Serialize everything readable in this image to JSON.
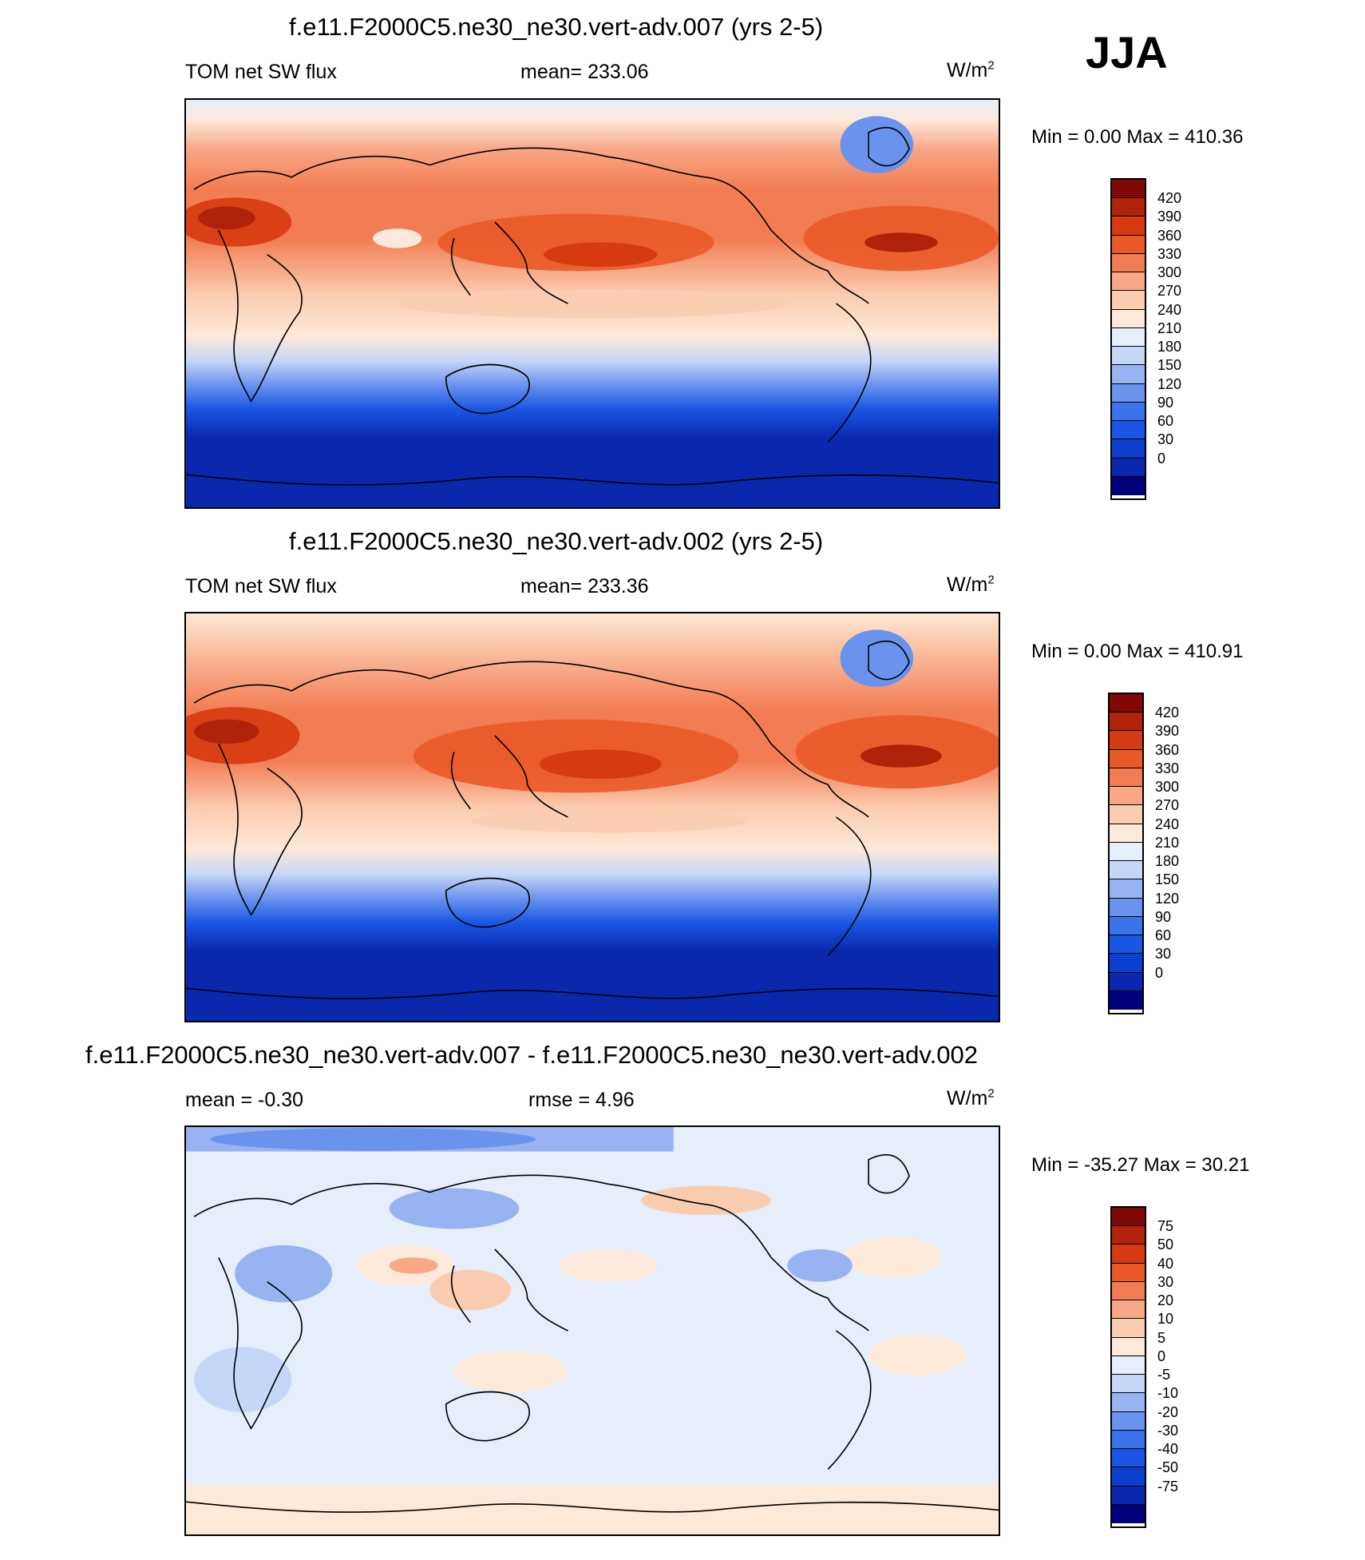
{
  "season": "JJA",
  "colors": {
    "abs": [
      "#02007a",
      "#0a28ae",
      "#0d3fcf",
      "#1a56e3",
      "#3b74ea",
      "#6a93ee",
      "#98b3f2",
      "#c6d6f7",
      "#e6eefb",
      "#fde9da",
      "#fbcdb0",
      "#f8a886",
      "#f27c53",
      "#ea5928",
      "#d63a10",
      "#b0220a",
      "#820808"
    ],
    "diff": [
      "#02007a",
      "#0a28ae",
      "#0d3fcf",
      "#1a56e3",
      "#3b74ea",
      "#6a93ee",
      "#98b3f2",
      "#c6d6f7",
      "#e6eefb",
      "#fde9da",
      "#fbcdb0",
      "#f8a886",
      "#f27c53",
      "#ea5928",
      "#d63a10",
      "#b0220a",
      "#820808"
    ]
  },
  "panels": [
    {
      "title": "f.e11.F2000C5.ne30_ne30.vert-adv.007 (yrs 2-5)",
      "left": "TOM net SW flux",
      "center": "mean= 233.06",
      "unit_base": "W/m",
      "unit_exp": "2",
      "minmax": "Min =   0.00 Max = 410.36",
      "kind": "abs",
      "levels": [
        "420",
        "390",
        "360",
        "330",
        "300",
        "270",
        "240",
        "210",
        "180",
        "150",
        "120",
        "90",
        "60",
        "30",
        "0"
      ]
    },
    {
      "title": "f.e11.F2000C5.ne30_ne30.vert-adv.002 (yrs 2-5)",
      "left": "TOM net SW flux",
      "center": "mean= 233.36",
      "unit_base": "W/m",
      "unit_exp": "2",
      "minmax": "Min =   0.00 Max = 410.91",
      "kind": "abs",
      "levels": [
        "420",
        "390",
        "360",
        "330",
        "300",
        "270",
        "240",
        "210",
        "180",
        "150",
        "120",
        "90",
        "60",
        "30",
        "0"
      ]
    },
    {
      "title": "f.e11.F2000C5.ne30_ne30.vert-adv.007 - f.e11.F2000C5.ne30_ne30.vert-adv.002",
      "left": "mean =  -0.30",
      "center": "rmse =   4.96",
      "unit_base": "W/m",
      "unit_exp": "2",
      "minmax": "Min = -35.27 Max =  30.21",
      "kind": "diff",
      "levels": [
        "75",
        "50",
        "40",
        "30",
        "20",
        "10",
        "5",
        "0",
        "-5",
        "-10",
        "-20",
        "-30",
        "-40",
        "-50",
        "-75"
      ]
    }
  ]
}
